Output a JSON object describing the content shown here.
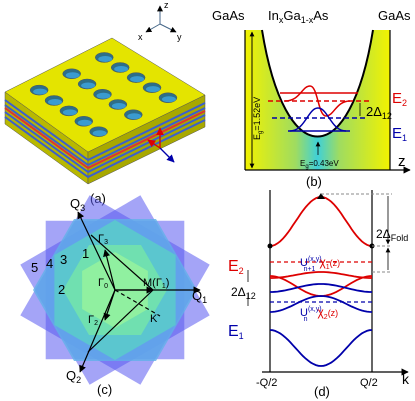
{
  "panels": {
    "a": {
      "label": "(a)",
      "axes": [
        "z",
        "x",
        "y"
      ]
    },
    "b": {
      "label": "(b)",
      "left_material": "GaAs",
      "right_material": "GaAs",
      "well_material": [
        "In",
        "x",
        "Ga",
        "1-x",
        "As"
      ],
      "e2": [
        "E",
        "2"
      ],
      "e1": [
        "E",
        "1"
      ],
      "delta": [
        "2Δ",
        "12"
      ],
      "eg_barrier": [
        "E",
        "g",
        "=1.52eV"
      ],
      "eg_well": [
        "E",
        "g",
        "=0.43eV"
      ],
      "axis": "z"
    },
    "c": {
      "label": "(c)",
      "vectors": [
        "Q",
        "3",
        "Q",
        "1",
        "Q",
        "2"
      ],
      "points": [
        "Γ",
        "3",
        "Γ",
        "0",
        "M(Γ",
        "1",
        ")",
        "Γ",
        "2",
        "K"
      ],
      "zones": [
        "5",
        "4",
        "3",
        "2",
        "1"
      ]
    },
    "d": {
      "label": "(d)",
      "e2": [
        "E",
        "2"
      ],
      "e1": [
        "E",
        "1"
      ],
      "delta12": [
        "2Δ",
        "12"
      ],
      "delta_fold": [
        "2Δ",
        "Fold"
      ],
      "upper_state": [
        "U",
        "(x,y)",
        "n+1",
        "χ",
        "1",
        "(z)"
      ],
      "lower_state": [
        "U",
        "(x,y)",
        "n",
        "χ",
        "2",
        "(z)"
      ],
      "k_left": "-Q/2",
      "k_right": "Q/2",
      "axis": "k"
    }
  }
}
